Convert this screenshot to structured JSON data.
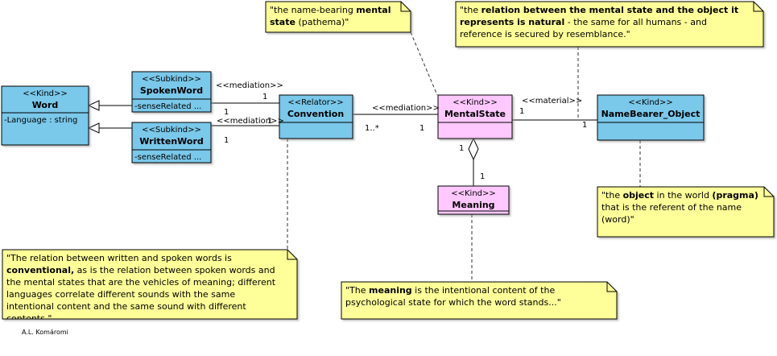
{
  "colors": {
    "kind_blue": "#7ac8ea",
    "kind_pink": "#ffc8ff",
    "note_yellow": "#ffff99",
    "line": "#000000"
  },
  "classes": {
    "word": {
      "stereotype": "<<Kind>>",
      "name": "Word",
      "attribute": "-Language : string"
    },
    "spoken_word": {
      "stereotype": "<<Subkind>>",
      "name": "SpokenWord",
      "attribute": "-senseRelated ..."
    },
    "written_word": {
      "stereotype": "<<Subkind>>",
      "name": "WrittenWord",
      "attribute": "-senseRelated ..."
    },
    "convention": {
      "stereotype": "<<Relator>>",
      "name": "Convention"
    },
    "mental_state": {
      "stereotype": "<<Kind>>",
      "name": "MentalState"
    },
    "namebearer": {
      "stereotype": "<<Kind>>",
      "name": "NameBearer_Object"
    },
    "meaning": {
      "stereotype": "<<Kind>>",
      "name": "Meaning"
    }
  },
  "relations": {
    "spoken_convention": {
      "stereotype": "<<mediation>>",
      "mult_spoken": "1",
      "mult_convention": "1"
    },
    "written_convention": {
      "stereotype": "<<mediation>>",
      "mult_written": "1",
      "mult_convention": "1"
    },
    "convention_mental": {
      "stereotype": "<<mediation>>",
      "mult_convention": "1..*",
      "mult_mental": "1"
    },
    "mental_namebearer": {
      "stereotype": "<<material>>",
      "mult_mental": "1",
      "mult_namebearer": "1"
    },
    "mental_meaning": {
      "mult_mental": "1",
      "mult_meaning": "1"
    }
  },
  "notes": {
    "pathema": {
      "t1": "\"the name-bearing ",
      "b1": "mental",
      "t2": " ",
      "b2": "state",
      "t3": " (pathema)\""
    },
    "relation": {
      "t1": "\"the ",
      "b1": "relation between the mental state and the object it represents is natural",
      "t2": " - the same for all humans - and reference is secured by resemblance.\""
    },
    "pragma": {
      "t1": "\"the ",
      "b1": "object",
      "t2": " in the world ",
      "b2": "(pragma)",
      "t3": " that is the referent of the name (word)\""
    },
    "conventional": {
      "t1": "\"The relation between written and spoken words is ",
      "b1": "conventional,",
      "t2": " as is the relation between spoken words and the mental states that are the vehicles of meaning; different languages correlate different sounds with the same intentional content and the same sound with different contents.\""
    },
    "meaning": {
      "t1": "\"The ",
      "b1": "meaning",
      "t2": " is the intentional content of the psychological state for which the word stands...\""
    }
  },
  "credit": "A.L. Komáromi"
}
